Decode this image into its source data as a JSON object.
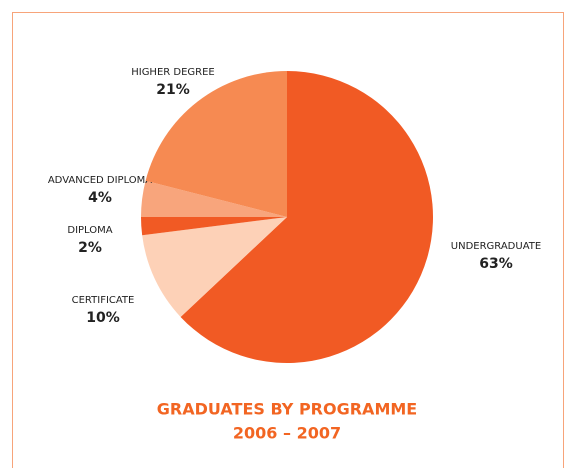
{
  "chart_data": {
    "type": "pie",
    "title": "GRADUATES BY PROGRAMME",
    "subtitle": "2006 – 2007",
    "categories": [
      "UNDERGRADUATE",
      "CERTIFICATE",
      "DIPLOMA",
      "ADVANCED DIPLOMA",
      "HIGHER DEGREE"
    ],
    "values": [
      63,
      10,
      2,
      4,
      21
    ],
    "value_labels": [
      "63%",
      "10%",
      "2%",
      "4%",
      "21%"
    ],
    "colors": [
      "#f15a24",
      "#fdd1b7",
      "#f15a24",
      "#f8a57c",
      "#f68a52"
    ]
  }
}
